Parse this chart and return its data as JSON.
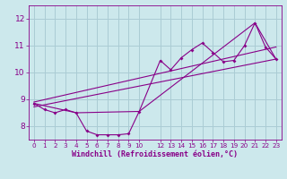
{
  "bg_color": "#cce8ec",
  "grid_color": "#aaccd4",
  "line_color": "#880088",
  "xlabel": "Windchill (Refroidissement éolien,°C)",
  "xlabel_color": "#880088",
  "tick_color": "#880088",
  "xlim": [
    -0.5,
    23.5
  ],
  "ylim": [
    7.5,
    12.5
  ],
  "yticks": [
    8,
    9,
    10,
    11,
    12
  ],
  "xtick_positions": [
    0,
    1,
    2,
    3,
    4,
    5,
    6,
    7,
    8,
    9,
    10,
    12,
    13,
    14,
    15,
    16,
    17,
    18,
    19,
    20,
    21,
    22,
    23
  ],
  "xtick_labels": [
    "0",
    "1",
    "2",
    "3",
    "4",
    "5",
    "6",
    "7",
    "8",
    "9",
    "10",
    "12",
    "13",
    "14",
    "15",
    "16",
    "17",
    "18",
    "19",
    "20",
    "21",
    "22",
    "23"
  ],
  "series1_x": [
    0,
    1,
    2,
    3,
    4,
    5,
    6,
    7,
    8,
    9,
    10,
    12,
    13,
    14,
    15,
    16,
    17,
    18,
    19,
    20,
    21,
    22,
    23
  ],
  "series1_y": [
    8.85,
    8.62,
    8.5,
    8.62,
    8.5,
    7.82,
    7.68,
    7.68,
    7.68,
    7.72,
    8.55,
    10.45,
    10.1,
    10.55,
    10.85,
    11.1,
    10.75,
    10.4,
    10.45,
    11.0,
    11.85,
    10.95,
    10.5
  ],
  "series2_x": [
    0,
    4,
    10,
    21,
    23
  ],
  "series2_y": [
    8.85,
    8.5,
    8.55,
    11.85,
    10.5
  ],
  "series3_x": [
    0,
    23
  ],
  "series3_y": [
    8.72,
    10.5
  ],
  "series4_x": [
    0,
    23
  ],
  "series4_y": [
    8.9,
    10.95
  ]
}
